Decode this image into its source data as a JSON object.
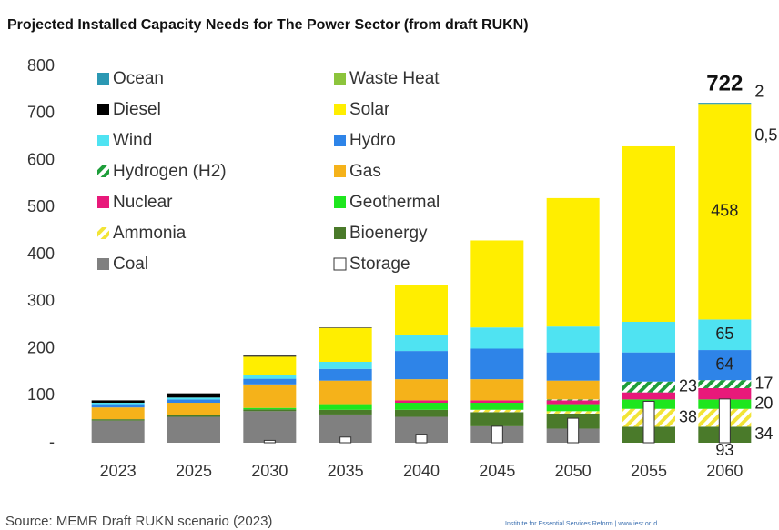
{
  "chart_data": {
    "type": "stacked-bar",
    "title": "Projected Installed Capacity Needs for The Power Sector (from draft RUKN)",
    "source": "Source: MEMR Draft RUKN scenario (2023)",
    "credit": "Institute for Essential Services Reform | www.iesr.or.id",
    "annotation": "722",
    "categories": [
      "2023",
      "2025",
      "2030",
      "2035",
      "2040",
      "2045",
      "2050",
      "2055",
      "2060"
    ],
    "ylim": [
      0,
      800
    ],
    "yticks": [
      {
        "value": 0,
        "label": "-"
      },
      100,
      200,
      300,
      400,
      500,
      600,
      700,
      800
    ],
    "grid": false,
    "legend": "top-left",
    "series": [
      {
        "name": "Ocean",
        "color": "#2b98b3",
        "values": [
          null,
          null,
          null,
          null,
          null,
          null,
          null,
          null,
          2
        ],
        "value_labels": [
          null,
          null,
          null,
          null,
          null,
          null,
          null,
          null,
          "2"
        ]
      },
      {
        "name": "Diesel",
        "color": "#000000",
        "values": [
          5,
          9,
          2,
          1,
          null,
          null,
          null,
          null,
          null
        ]
      },
      {
        "name": "Wind",
        "color": "#4fe3f2",
        "values": [
          3,
          4,
          7,
          15,
          35,
          45,
          55,
          65,
          65
        ],
        "value_labels": [
          null,
          null,
          null,
          null,
          null,
          null,
          null,
          null,
          "65"
        ]
      },
      {
        "name": "Hydrogen (H2)",
        "color": "#1e9e3a",
        "pattern": "hatch",
        "values": [
          null,
          null,
          null,
          null,
          null,
          null,
          2,
          23,
          17
        ],
        "value_labels": [
          null,
          null,
          null,
          null,
          null,
          null,
          null,
          "23",
          "17"
        ]
      },
      {
        "name": "Nuclear",
        "color": "#e8197a",
        "values": [
          null,
          null,
          null,
          null,
          5,
          5,
          8,
          15,
          24
        ]
      },
      {
        "name": "Ammonia",
        "color": "#f2e436",
        "pattern": "hatch",
        "values": [
          null,
          null,
          null,
          null,
          null,
          5,
          5,
          38,
          38
        ],
        "value_labels": [
          null,
          null,
          null,
          null,
          null,
          null,
          null,
          "38",
          null
        ]
      },
      {
        "name": "Coal",
        "color": "#808080",
        "values": [
          47,
          55,
          67,
          60,
          55,
          35,
          30,
          null,
          null
        ]
      },
      {
        "name": "Waste Heat",
        "color": "#8cc43c",
        "values": [
          null,
          null,
          null,
          null,
          null,
          null,
          null,
          null,
          0.5
        ],
        "value_labels": [
          null,
          null,
          null,
          null,
          null,
          null,
          null,
          null,
          "0,5"
        ]
      },
      {
        "name": "Solar",
        "color": "#ffee00",
        "values": [
          null,
          null,
          40,
          72,
          105,
          185,
          273,
          373,
          458
        ],
        "value_labels": [
          null,
          null,
          null,
          null,
          null,
          null,
          null,
          null,
          "458"
        ]
      },
      {
        "name": "Hydro",
        "color": "#2e84e8",
        "values": [
          7,
          7,
          12,
          25,
          60,
          65,
          60,
          62,
          64
        ],
        "value_labels": [
          null,
          null,
          null,
          null,
          null,
          null,
          null,
          null,
          "64"
        ]
      },
      {
        "name": "Gas",
        "color": "#f5b21a",
        "values": [
          25,
          27,
          50,
          50,
          45,
          45,
          40,
          null,
          null
        ]
      },
      {
        "name": "Geothermal",
        "color": "#1ee61e",
        "values": [
          null,
          null,
          3,
          12,
          15,
          15,
          15,
          20,
          20
        ],
        "value_labels": [
          null,
          null,
          null,
          null,
          null,
          null,
          null,
          null,
          "20"
        ]
      },
      {
        "name": "Bioenergy",
        "color": "#4a7a2a",
        "values": [
          3,
          3,
          4,
          10,
          15,
          30,
          32,
          34,
          34
        ],
        "value_labels": [
          null,
          null,
          null,
          null,
          null,
          null,
          null,
          null,
          "34"
        ]
      },
      {
        "name": "Storage",
        "color": "#ffffff",
        "overlay": true,
        "values": [
          null,
          null,
          5,
          12,
          18,
          35,
          52,
          88,
          93
        ],
        "value_labels": [
          null,
          null,
          null,
          null,
          null,
          null,
          null,
          null,
          "93"
        ]
      }
    ]
  }
}
